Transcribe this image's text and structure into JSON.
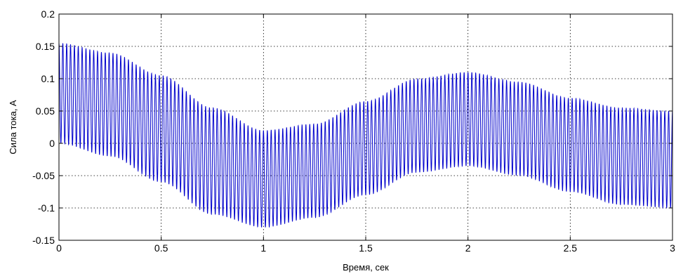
{
  "chart_data": {
    "type": "line",
    "title": "",
    "xlabel": "Время, сек",
    "ylabel": "Сила тока, А",
    "xlim": [
      0,
      3
    ],
    "ylim": [
      -0.15,
      0.2
    ],
    "xticks": [
      0,
      0.5,
      1,
      1.5,
      2,
      2.5,
      3
    ],
    "xtick_labels": [
      "0",
      "0.5",
      "1",
      "1.5",
      "2",
      "2.5",
      "3"
    ],
    "yticks": [
      -0.15,
      -0.1,
      -0.05,
      0,
      0.05,
      0.1,
      0.15,
      0.2
    ],
    "ytick_labels": [
      "-0.15",
      "-0.1",
      "-0.05",
      "0",
      "0.05",
      "0.1",
      "0.15",
      "0.2"
    ],
    "grid": true,
    "grid_style": "dotted",
    "series": [
      {
        "color": "#0000cc",
        "oscillation_frequency_hz": 53,
        "envelope_upper": {
          "x": [
            0,
            0.25,
            0.5,
            0.75,
            1.0,
            1.25,
            1.5,
            1.75,
            2.0,
            2.25,
            2.5,
            2.75,
            3.0
          ],
          "y": [
            0.155,
            0.14,
            0.105,
            0.055,
            0.02,
            0.03,
            0.065,
            0.1,
            0.11,
            0.095,
            0.07,
            0.055,
            0.05
          ]
        },
        "envelope_lower": {
          "x": [
            0,
            0.25,
            0.5,
            0.75,
            1.0,
            1.25,
            1.5,
            1.75,
            2.0,
            2.25,
            2.5,
            2.75,
            3.0
          ],
          "y": [
            0.0,
            -0.02,
            -0.06,
            -0.11,
            -0.13,
            -0.115,
            -0.08,
            -0.045,
            -0.035,
            -0.05,
            -0.075,
            -0.095,
            -0.1
          ]
        }
      }
    ]
  }
}
